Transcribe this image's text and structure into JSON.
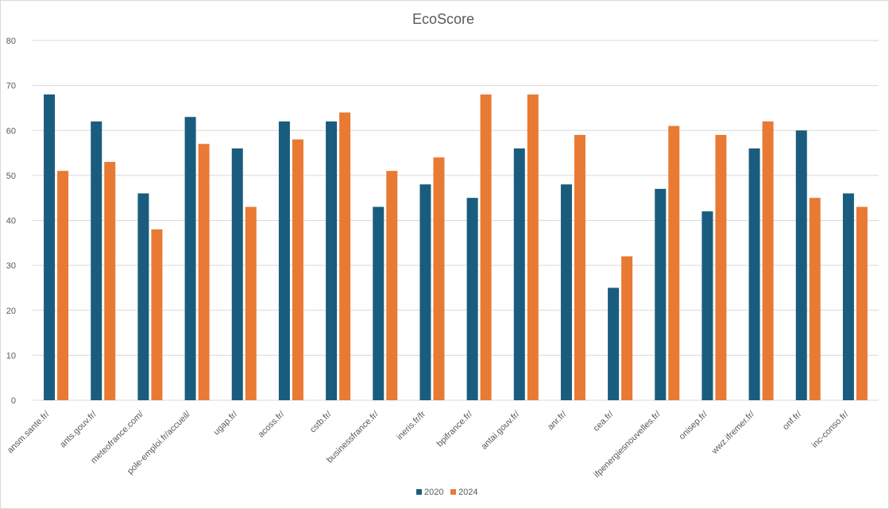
{
  "chart_data": {
    "type": "bar",
    "title": "EcoScore",
    "xlabel": "",
    "ylabel": "",
    "ylim": [
      0,
      80
    ],
    "yticks": [
      0,
      10,
      20,
      30,
      40,
      50,
      60,
      70,
      80
    ],
    "grid": true,
    "legend_position": "bottom",
    "categories": [
      "ansm.sante.fr/",
      "ants.gouv.fr/",
      "meteofrance.com/",
      "pole-emploi.fr/accueil/",
      "ugap.fr/",
      "acoss.fr/",
      "cstb.fr/",
      "businessfrance.fr/",
      "ineris.fr/fr",
      "bpifrance.fr/",
      "antai.gouv.fr/",
      "anr.fr/",
      "cea.fr/",
      "ifpenergiesnouvelles.fr/",
      "onisep.fr/",
      "wwz.ifremer.fr/",
      "onf.fr/",
      "inc-conso.fr/"
    ],
    "series": [
      {
        "name": "2020",
        "color": "#1a5c7e",
        "values": [
          68,
          62,
          46,
          63,
          56,
          62,
          62,
          43,
          48,
          45,
          56,
          48,
          25,
          47,
          42,
          56,
          60,
          46
        ]
      },
      {
        "name": "2024",
        "color": "#e87a34",
        "values": [
          51,
          53,
          38,
          57,
          43,
          58,
          64,
          51,
          54,
          68,
          68,
          59,
          32,
          61,
          59,
          62,
          45,
          43
        ]
      }
    ]
  }
}
